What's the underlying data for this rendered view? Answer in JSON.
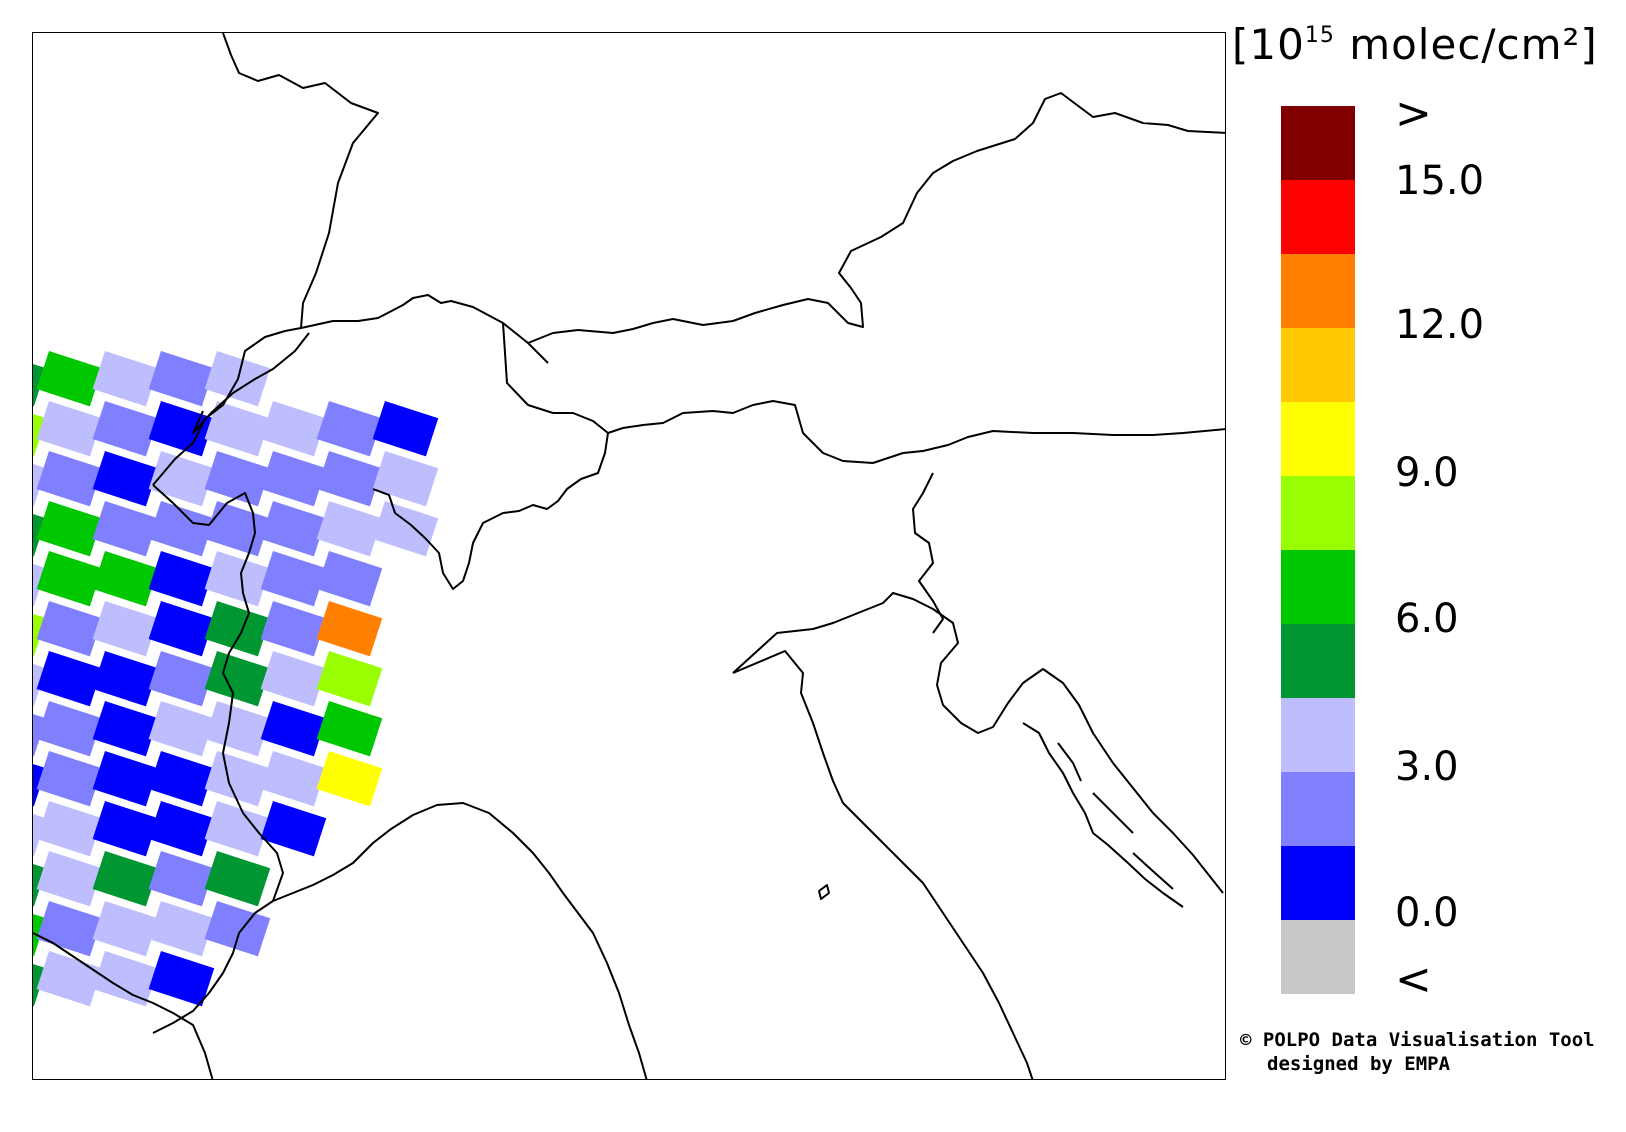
{
  "legend": {
    "unit_base": "[10",
    "unit_exp": "15",
    "unit_rest": " molec/cm²]",
    "over_symbol": ">",
    "under_symbol": "<",
    "ticks": [
      "15.0",
      "12.0",
      "9.0",
      "6.0",
      "3.0",
      "0.0"
    ],
    "colors": [
      "#800000",
      "#ff0000",
      "#ff8000",
      "#ffc800",
      "#ffff00",
      "#99ff00",
      "#00c800",
      "#009632",
      "#bebeff",
      "#8080ff",
      "#0000ff",
      "#c8c8c8"
    ]
  },
  "credit": {
    "line1": "© POLPO Data Visualisation Tool",
    "line2": "designed by EMPA"
  },
  "map": {
    "region": "Alps / Northern Italy",
    "border_color": "#000000",
    "pixel_colors": {
      "dark-green": "#009632",
      "green": "#00c800",
      "lime": "#99ff00",
      "yellow": "#ffff00",
      "orange": "#ff8000",
      "blue": "#0000ff",
      "mid-blue": "#8080ff",
      "light-blue": "#bebeff"
    }
  }
}
